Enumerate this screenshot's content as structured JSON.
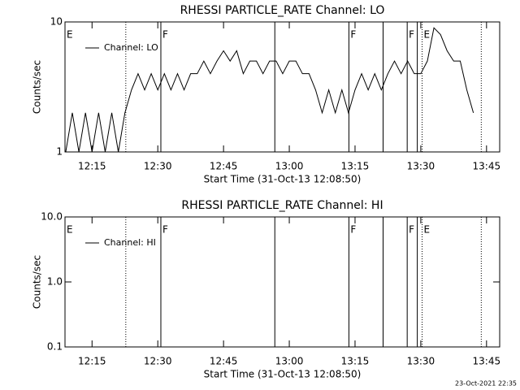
{
  "chart_data": [
    {
      "type": "line",
      "title": "RHESSI PARTICLE_RATE Channel: LO",
      "x_label": "Start Time (31-Oct-13 12:08:50)",
      "y_label": "Counts/sec",
      "log_y": true,
      "legend": "upper left",
      "xlim": [
        8.83,
        108
      ],
      "ylim": [
        1,
        10
      ],
      "xticks": [
        {
          "value": 15,
          "label": "12:15"
        },
        {
          "value": 30,
          "label": "12:30"
        },
        {
          "value": 45,
          "label": "12:45"
        },
        {
          "value": 60,
          "label": "13:00"
        },
        {
          "value": 75,
          "label": "13:15"
        },
        {
          "value": 90,
          "label": "13:30"
        },
        {
          "value": 105,
          "label": "13:45"
        }
      ],
      "yticks": [
        1,
        10
      ],
      "x": [
        9,
        10.5,
        12,
        13.5,
        15,
        16.5,
        18,
        19.5,
        21,
        22.5,
        24,
        25.5,
        27,
        28.5,
        30,
        31.5,
        33,
        34.5,
        36,
        37.5,
        39,
        40.5,
        42,
        43.5,
        45,
        46.5,
        48,
        49.5,
        51,
        52.5,
        54,
        55.5,
        57,
        58.5,
        60,
        61.5,
        63,
        64.5,
        66,
        67.5,
        69,
        70.5,
        72,
        73.5,
        75,
        76.5,
        78,
        79.5,
        81,
        82.5,
        84,
        85.5,
        87,
        88.5,
        90,
        91.5,
        93,
        94.5,
        96,
        97.5,
        99,
        100.5,
        102
      ],
      "series": [
        {
          "name": "Channel: LO",
          "color": "#000000",
          "values": [
            1,
            2,
            1,
            2,
            1,
            2,
            1,
            2,
            1,
            2,
            3,
            4,
            3,
            4,
            3,
            4,
            3,
            4,
            3,
            4,
            4,
            5,
            4,
            5,
            6,
            5,
            6,
            4,
            5,
            5,
            4,
            5,
            5,
            4,
            5,
            5,
            4,
            4,
            3,
            2,
            3,
            2,
            3,
            2,
            3,
            4,
            3,
            4,
            3,
            4,
            5,
            4,
            5,
            4,
            4,
            5,
            9,
            8,
            6,
            5,
            5,
            3,
            2
          ]
        }
      ],
      "flags": [
        {
          "x": 8.83,
          "style": "solid",
          "label": "E"
        },
        {
          "x": 22.7,
          "style": "dotted"
        },
        {
          "x": 30.7,
          "style": "solid",
          "label": "F"
        },
        {
          "x": 56.7,
          "style": "solid"
        },
        {
          "x": 73.6,
          "style": "solid",
          "label": "F"
        },
        {
          "x": 81.4,
          "style": "solid"
        },
        {
          "x": 86.9,
          "style": "solid",
          "label": "F"
        },
        {
          "x": 89.2,
          "style": "solid"
        },
        {
          "x": 90.3,
          "style": "dotted",
          "label": "E"
        },
        {
          "x": 103.8,
          "style": "dotted"
        }
      ]
    },
    {
      "type": "line",
      "title": "RHESSI PARTICLE_RATE Channel: HI",
      "x_label": "Start Time (31-Oct-13 12:08:50)",
      "y_label": "Counts/sec",
      "log_y": true,
      "legend": "upper left",
      "xlim": [
        8.83,
        108
      ],
      "ylim": [
        0.1,
        10
      ],
      "xticks": [
        {
          "value": 15,
          "label": "12:15"
        },
        {
          "value": 30,
          "label": "12:30"
        },
        {
          "value": 45,
          "label": "12:45"
        },
        {
          "value": 60,
          "label": "13:00"
        },
        {
          "value": 75,
          "label": "13:15"
        },
        {
          "value": 90,
          "label": "13:30"
        },
        {
          "value": 105,
          "label": "13:45"
        }
      ],
      "yticks": [
        0.1,
        {
          "value": 1,
          "label": "1.0"
        },
        {
          "value": 10,
          "label": "10.0"
        }
      ],
      "x": [],
      "series": [
        {
          "name": "Channel: HI",
          "color": "#000000",
          "values": []
        }
      ],
      "flags": [
        {
          "x": 8.83,
          "style": "solid",
          "label": "E"
        },
        {
          "x": 22.7,
          "style": "dotted"
        },
        {
          "x": 30.7,
          "style": "solid",
          "label": "F"
        },
        {
          "x": 56.7,
          "style": "solid"
        },
        {
          "x": 73.6,
          "style": "solid",
          "label": "F"
        },
        {
          "x": 81.4,
          "style": "solid"
        },
        {
          "x": 86.9,
          "style": "solid",
          "label": "F"
        },
        {
          "x": 89.2,
          "style": "solid"
        },
        {
          "x": 90.3,
          "style": "dotted",
          "label": "E"
        },
        {
          "x": 103.8,
          "style": "dotted"
        }
      ]
    }
  ],
  "footer": "23-Oct-2021 22:35"
}
